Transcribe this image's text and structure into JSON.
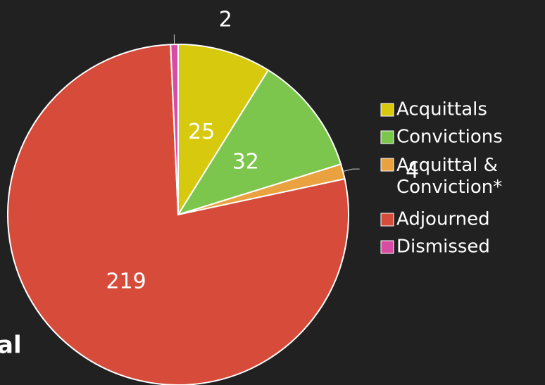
{
  "chart_data": {
    "type": "pie",
    "categories": [
      "Acquittals",
      "Convictions",
      "Acquittal & Conviction*",
      "Adjourned",
      "Dismissed"
    ],
    "values": [
      25,
      32,
      4,
      219,
      2
    ],
    "colors": [
      "#d6c90e",
      "#7dc64e",
      "#e9a23f",
      "#d64b3a",
      "#d94ca3"
    ],
    "caption": "al"
  }
}
